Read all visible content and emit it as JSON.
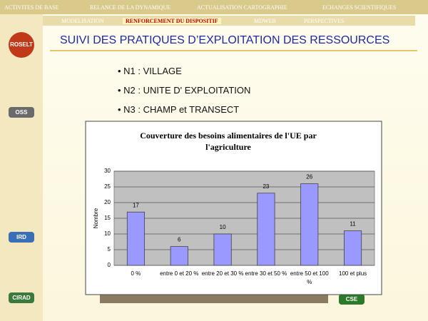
{
  "nav_top": [
    "ACTIVITES DE BASE",
    "RELANCE DE LA DYNAMIQUE",
    "ACTUALISATION CARTOGRAPHIE",
    "ECHANGES SCIENTIFIQUES"
  ],
  "nav_sub": [
    "MODELISATION",
    "RENFORCEMENT DU DISPOSITIF",
    "MDWEB",
    "PERSPECTIVES"
  ],
  "title": "SUIVI DES PRATIQUES D’EXPLOITATION DES RESSOURCES",
  "bullets": [
    "N1 : VILLAGE",
    "N2 : UNITE D' EXPLOITATION",
    "N3 : CHAMP et TRANSECT"
  ],
  "logos": [
    "ROSELT",
    "OSS",
    "IRD",
    "CIRAD",
    "CSE"
  ],
  "chart_data": {
    "type": "bar",
    "title": "Couverture des besoins alimentaires de l'UE par l'agriculture",
    "y_label": "Nombre",
    "categories": [
      "0 %",
      "entre 0 et 20 %",
      "entre 20 et 30 %",
      "entre 30 et 50 %",
      "entre 50 et 100 %",
      "100 et plus"
    ],
    "values": [
      17,
      6,
      10,
      23,
      26,
      11
    ],
    "color": "#9999ff",
    "ylim": [
      0,
      30
    ],
    "yticks": [
      0,
      5,
      10,
      15,
      20,
      25,
      30
    ],
    "grid": true
  }
}
